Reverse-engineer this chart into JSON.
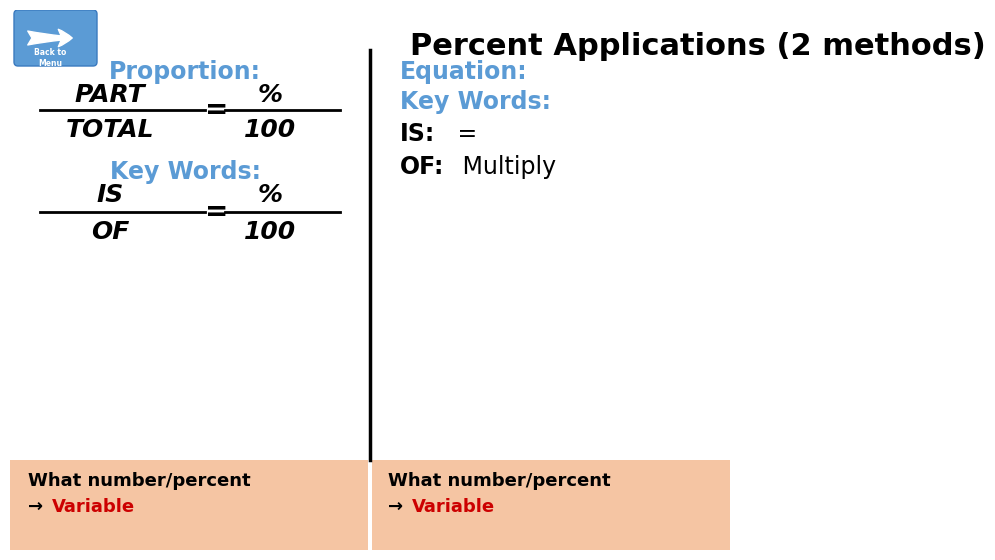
{
  "title": "Percent Applications (2 methods)",
  "title_fontsize": 22,
  "title_color": "#000000",
  "bg_color": "#ffffff",
  "panel_bg": "#f5c5a3",
  "left_header": "Proportion:",
  "left_header_color": "#5b9bd5",
  "left_fraction1_num": "PART",
  "left_fraction1_den": "TOTAL",
  "left_fraction2_num": "%",
  "left_fraction2_den": "100",
  "left_kw_header": "Key Words:",
  "left_kw_color": "#5b9bd5",
  "left_fraction3_num": "IS",
  "left_fraction3_den": "OF",
  "left_fraction4_num": "%",
  "left_fraction4_den": "100",
  "right_header": "Equation:",
  "right_header_color": "#5b9bd5",
  "right_kw": "Key Words:",
  "right_kw_color": "#5b9bd5",
  "right_is_bold": "IS:",
  "right_is_rest": " =",
  "right_of_bold": "OF:",
  "right_of_rest": " Multiply",
  "right_text_color": "#000000",
  "bottom_text1": "What number/percent",
  "bottom_text2": "Variable",
  "bottom_variable_color": "#cc0000",
  "bottom_bg": "#f5c5a3",
  "divider_color": "#000000"
}
